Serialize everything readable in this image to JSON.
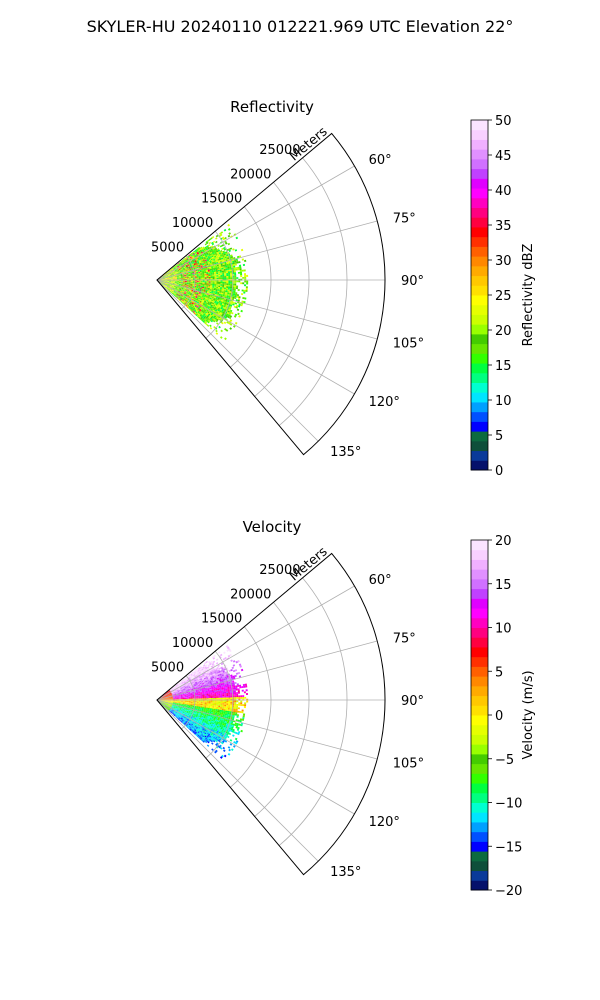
{
  "figure": {
    "suptitle": "SKYLER-HU  20240110  012221.969 UTC Elevation 22°",
    "range_label": "Meters"
  },
  "colors": {
    "grid": "#b0b0b0",
    "frame": "#000000"
  },
  "chart_data": [
    {
      "type": "polar-sector",
      "title": "Reflectivity",
      "theta_range_deg": [
        50,
        140
      ],
      "theta_ticks": [
        "60°",
        "75°",
        "90°",
        "105°",
        "120°",
        "135°"
      ],
      "r_range": [
        0,
        30000
      ],
      "r_ticks": [
        "5000",
        "10000",
        "15000",
        "20000",
        "25000"
      ],
      "data_extent": {
        "max_range_m": 12000,
        "description_of_field": "reflectivity echoes within ~12 km, mostly 10-25 dBZ with cores 30-40 dBZ near 5 km"
      },
      "colorbar": {
        "label": "Reflectivity dBZ",
        "min": 0,
        "max": 50,
        "ticks": [
          "0",
          "5",
          "10",
          "15",
          "20",
          "25",
          "30",
          "35",
          "40",
          "45",
          "50"
        ],
        "colors": [
          "#05116b",
          "#0a3a9a",
          "#0f4f3a",
          "#0c6b3f",
          "#0000ff",
          "#0050ff",
          "#00a0ff",
          "#00e5ff",
          "#00ffd0",
          "#00ff80",
          "#00ff40",
          "#33ff00",
          "#66e600",
          "#44cc00",
          "#99ff00",
          "#ccff00",
          "#e6ff00",
          "#ffff00",
          "#ffe000",
          "#ffc800",
          "#ffaa00",
          "#ff8800",
          "#ff6000",
          "#ff3000",
          "#ff0000",
          "#ff0040",
          "#ff0080",
          "#ff00c0",
          "#ff00ff",
          "#e000ff",
          "#c040ff",
          "#d070ff",
          "#e090ff",
          "#f0b0ff",
          "#f8d0ff",
          "#fbe4ff"
        ]
      }
    },
    {
      "type": "polar-sector",
      "title": "Velocity",
      "theta_range_deg": [
        50,
        140
      ],
      "theta_ticks": [
        "60°",
        "75°",
        "90°",
        "105°",
        "120°",
        "135°"
      ],
      "r_range": [
        0,
        30000
      ],
      "r_ticks": [
        "5000",
        "10000",
        "15000",
        "20000",
        "25000"
      ],
      "data_extent": {
        "max_range_m": 12000,
        "description_of_field": "outbound (+10 to +20 m/s) north of 90°, inbound (-5 to -12 m/s) south of 100°"
      },
      "colorbar": {
        "label": "Velocity (m/s)",
        "min": -20,
        "max": 20,
        "ticks": [
          "−20",
          "−15",
          "−10",
          "−5",
          "0",
          "5",
          "10",
          "15",
          "20"
        ],
        "colors": [
          "#05116b",
          "#0a3a9a",
          "#0f4f3a",
          "#0c6b3f",
          "#0000ff",
          "#0050ff",
          "#00a0ff",
          "#00e5ff",
          "#00ffd0",
          "#00ff80",
          "#00ff40",
          "#33ff00",
          "#66e600",
          "#44cc00",
          "#99ff00",
          "#ccff00",
          "#e6ff00",
          "#ffff00",
          "#ffe000",
          "#ffc800",
          "#ffaa00",
          "#ff8800",
          "#ff6000",
          "#ff3000",
          "#ff0000",
          "#ff0040",
          "#ff0080",
          "#ff00c0",
          "#ff00ff",
          "#e000ff",
          "#c040ff",
          "#d070ff",
          "#e090ff",
          "#f0b0ff",
          "#f8d0ff",
          "#fbe4ff"
        ]
      }
    }
  ]
}
